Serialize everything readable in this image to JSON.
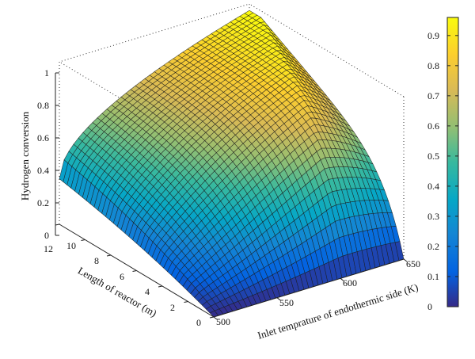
{
  "chart_data": {
    "type": "surface3d",
    "title": "",
    "xlabel": "Inlet temprature of endothermic side (K)",
    "ylabel": "Length of reactor (m)",
    "zlabel": "Hydrogen conversion",
    "xlim": [
      500,
      650
    ],
    "ylim": [
      0,
      12
    ],
    "zlim": [
      0,
      1
    ],
    "x_ticks": [
      "500",
      "550",
      "600",
      "650"
    ],
    "y_ticks": [
      "0",
      "2",
      "4",
      "6",
      "8",
      "10",
      "12"
    ],
    "z_ticks": [
      "0",
      "0.2",
      "0.4",
      "0.6",
      "0.8",
      "1"
    ],
    "colorbar": {
      "ticks": [
        "0",
        "0.1",
        "0.2",
        "0.3",
        "0.4",
        "0.5",
        "0.6",
        "0.7",
        "0.8",
        "0.9"
      ],
      "range": [
        0,
        0.96
      ],
      "colormap": "parula"
    },
    "grid": true,
    "corner_values": [
      {
        "x": 500,
        "y": 0,
        "z": 0.0
      },
      {
        "x": 650,
        "y": 0,
        "z": 0.0
      },
      {
        "x": 500,
        "y": 12,
        "z": 0.28
      },
      {
        "x": 650,
        "y": 12,
        "z": 0.96
      }
    ]
  }
}
